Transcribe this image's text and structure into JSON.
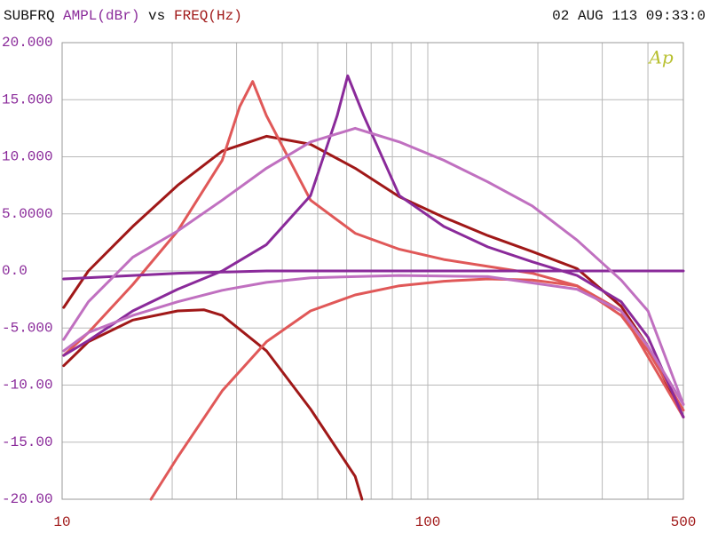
{
  "chart_data": {
    "type": "line",
    "header": "SUBFRQ",
    "ylabel": "AMPL(dBr)",
    "vs": "vs",
    "xlabel": "FREQ(Hz)",
    "timestamp": "02 AUG 113 09:33:0",
    "logo": "Ap",
    "xscale": "log",
    "grid": true,
    "xlim": [
      10,
      500
    ],
    "ylim": [
      -20,
      20
    ],
    "xticks": [
      10,
      100,
      500
    ],
    "xminor": [
      20,
      30,
      40,
      50,
      60,
      70,
      80,
      90,
      200,
      300,
      400
    ],
    "yticks": [
      {
        "value": 20,
        "label": "20.000"
      },
      {
        "value": 15,
        "label": "15.000"
      },
      {
        "value": 10,
        "label": "10.000"
      },
      {
        "value": 5,
        "label": "5.0000"
      },
      {
        "value": 0,
        "label": "0.0"
      },
      {
        "value": -5,
        "label": "-5.000"
      },
      {
        "value": -10,
        "label": "-10.00"
      },
      {
        "value": -15,
        "label": "-15.00"
      },
      {
        "value": -20,
        "label": "-20.00"
      }
    ],
    "series": [
      {
        "color": "#a01818",
        "x": [
          10.1,
          11.8,
          15.6,
          20.7,
          27.4,
          36.2,
          47.8,
          63.3,
          83.6,
          110.6,
          146,
          193,
          256,
          338,
          400,
          500
        ],
        "values": [
          -3.2,
          0,
          3.9,
          7.5,
          10.5,
          11.8,
          11.1,
          9,
          6.5,
          4.7,
          3.1,
          1.7,
          0.2,
          -3.1,
          -6.6,
          -12.8
        ]
      },
      {
        "color": "#a01818",
        "x": [
          10.1,
          11.8,
          15.6,
          20.7,
          24.4,
          27.4,
          36.2,
          47.8,
          63.3,
          66.1
        ],
        "values": [
          -8.3,
          -6.2,
          -4.3,
          -3.5,
          -3.4,
          -3.9,
          -7,
          -12.1,
          -18,
          -20
        ]
      },
      {
        "color": "#e05858",
        "x": [
          10.1,
          11.8,
          15.6,
          20.7,
          27.4,
          30.6,
          33.2,
          36.2,
          47.8,
          63.3,
          83.6,
          110.6,
          146,
          193,
          256,
          338,
          500
        ],
        "values": [
          -7.4,
          -5.4,
          -1.2,
          3.5,
          9.7,
          14.4,
          16.6,
          13.6,
          6.2,
          3.3,
          1.9,
          1,
          0.4,
          -0.2,
          -1.3,
          -3.5,
          -12.8
        ]
      },
      {
        "color": "#e05858",
        "x": [
          17.5,
          20.7,
          27.4,
          36.2,
          47.8,
          63.3,
          83.6,
          110.6,
          146,
          193,
          256,
          338,
          400,
          500
        ],
        "values": [
          -20,
          -16.3,
          -10.5,
          -6.2,
          -3.5,
          -2.1,
          -1.3,
          -0.9,
          -0.7,
          -0.8,
          -1.3,
          -3.9,
          -7,
          -12.2
        ]
      },
      {
        "color": "#8a2a9a",
        "x": [
          10.1,
          11.8,
          15.6,
          20.7,
          27.4,
          36.2,
          47.8,
          56.5,
          60.4,
          66.8,
          83.6,
          110.6,
          146,
          193,
          256,
          338,
          400,
          500
        ],
        "values": [
          -7.4,
          -6.1,
          -3.5,
          -1.6,
          0,
          2.3,
          6.6,
          13.6,
          17.1,
          13.6,
          6.6,
          3.9,
          2.1,
          0.8,
          -0.4,
          -2.7,
          -5.8,
          -12.8
        ]
      },
      {
        "color": "#8a2a9a",
        "x": [
          10.1,
          20.7,
          36.2,
          500
        ],
        "values": [
          -0.7,
          -0.2,
          0,
          0
        ]
      },
      {
        "color": "#c070c0",
        "x": [
          10.1,
          11.8,
          15.6,
          20.7,
          27.4,
          36.2,
          47.8,
          63.3,
          83.6,
          110.6,
          146,
          193,
          256,
          338,
          400,
          500
        ],
        "values": [
          -6,
          -2.7,
          1.2,
          3.5,
          6.2,
          9,
          11.3,
          12.5,
          11.3,
          9.7,
          7.8,
          5.7,
          2.7,
          -0.8,
          -3.5,
          -11.7
        ]
      },
      {
        "color": "#c070c0",
        "x": [
          10.1,
          11.8,
          15.6,
          20.7,
          27.4,
          36.2,
          47.8,
          63.3,
          83.6,
          146,
          256,
          338,
          400,
          500
        ],
        "values": [
          -7,
          -5.4,
          -3.9,
          -2.7,
          -1.7,
          -1,
          -0.6,
          -0.5,
          -0.4,
          -0.5,
          -1.6,
          -3.5,
          -6.6,
          -11.7
        ]
      }
    ]
  }
}
